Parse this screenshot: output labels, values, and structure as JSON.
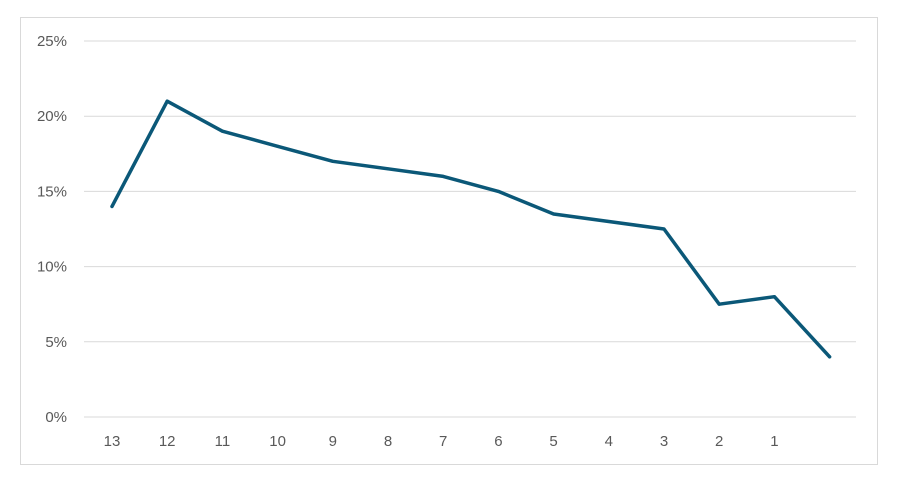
{
  "chart_data": {
    "type": "line",
    "title": "",
    "xlabel": "",
    "ylabel": "",
    "x_tick_labels": [
      "13",
      "12",
      "11",
      "10",
      "9",
      "8",
      "7",
      "6",
      "5",
      "4",
      "3",
      "2",
      "1"
    ],
    "y_tick_labels": [
      "0%",
      "5%",
      "10%",
      "15%",
      "20%",
      "25%"
    ],
    "y_ticks": [
      0,
      5,
      10,
      15,
      20,
      25
    ],
    "ylim": [
      0,
      25
    ],
    "grid": true,
    "legend": "none",
    "series": [
      {
        "color": "#0b5878",
        "values": [
          14,
          21,
          19,
          18,
          17,
          16.5,
          16,
          15,
          13.5,
          13,
          12.5,
          7.5,
          8,
          4
        ]
      }
    ]
  }
}
